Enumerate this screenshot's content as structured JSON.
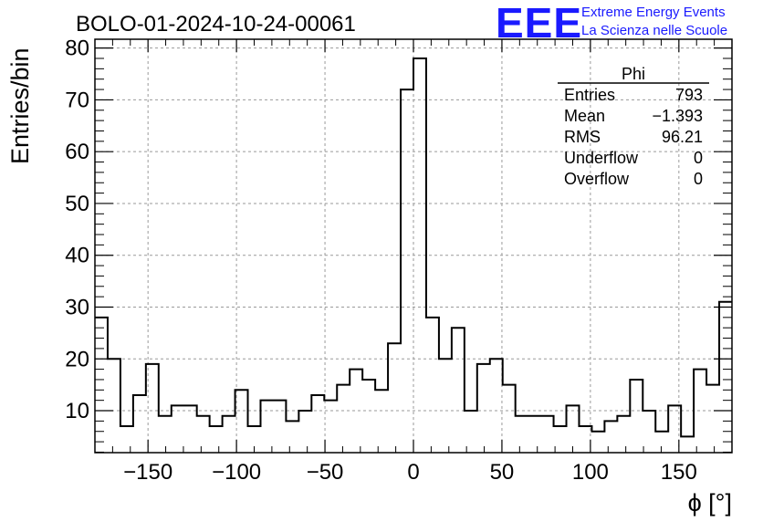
{
  "chart_data": {
    "type": "histogram",
    "title": "BOLO-01-2024-10-24-00061",
    "xlabel": "ϕ [°]",
    "ylabel": "Entries/bin",
    "xlim": [
      -180,
      180
    ],
    "ylim": [
      1.9,
      81.7
    ],
    "grid": true,
    "bin_width": 7.2,
    "bin_edges_start": -180,
    "values": [
      28,
      20,
      7,
      13,
      19,
      9,
      11,
      11,
      9,
      7,
      9,
      14,
      7,
      12,
      12,
      8,
      10,
      13,
      12,
      15,
      18,
      16,
      14,
      23,
      72,
      78,
      28,
      20,
      26,
      10,
      19,
      20,
      15,
      9,
      9,
      9,
      7,
      11,
      7,
      6,
      8,
      9,
      16,
      10,
      6,
      11,
      5,
      18,
      15,
      31
    ],
    "x_ticks": [
      "−150",
      "−100",
      "−50",
      "0",
      "50",
      "100",
      "150"
    ],
    "x_tick_values": [
      -150,
      -100,
      -50,
      0,
      50,
      100,
      150
    ],
    "y_ticks": [
      "10",
      "20",
      "30",
      "40",
      "50",
      "60",
      "70",
      "80"
    ],
    "y_tick_values": [
      10,
      20,
      30,
      40,
      50,
      60,
      70,
      80
    ],
    "line_color": "#000000",
    "grid_color": "#9a9a9a"
  },
  "stats_box": {
    "name": "Phi",
    "rows": [
      {
        "label": "Entries",
        "value": "793"
      },
      {
        "label": "Mean",
        "value": "−1.393"
      },
      {
        "label": "RMS",
        "value": "96.21"
      },
      {
        "label": "Underflow",
        "value": "0"
      },
      {
        "label": "Overflow",
        "value": "0"
      }
    ]
  },
  "logo": {
    "mark": "EEE",
    "line1": "Extreme Energy Events",
    "line2": "La Scienza nelle Scuole",
    "color": "#1a1aff"
  }
}
